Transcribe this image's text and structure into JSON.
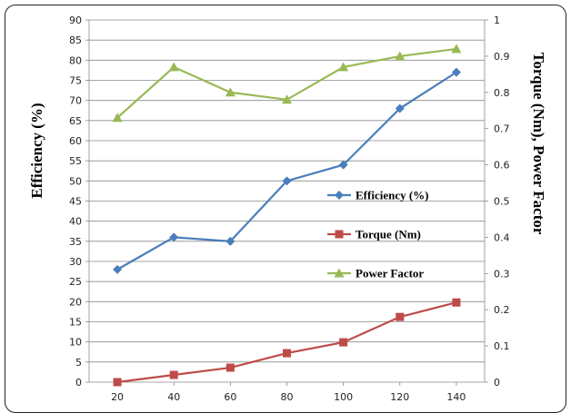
{
  "chart_data": {
    "type": "line",
    "x": [
      20,
      40,
      60,
      80,
      100,
      120,
      140
    ],
    "xlim": [
      10,
      150
    ],
    "xticks": [
      "20",
      "40",
      "60",
      "80",
      "100",
      "120",
      "140"
    ],
    "ylabel_left": "Efficiency (%)",
    "ylabel_right": "Torque (Nm), Power Factor",
    "ylim_left": [
      0,
      90
    ],
    "ylim_right": [
      0,
      1
    ],
    "yticks_left": [
      "0",
      "5",
      "10",
      "15",
      "20",
      "25",
      "30",
      "35",
      "40",
      "45",
      "50",
      "55",
      "60",
      "65",
      "70",
      "75",
      "80",
      "85",
      "90"
    ],
    "yticks_right": [
      "0",
      "0.1",
      "0.2",
      "0.3",
      "0.4",
      "0.5",
      "0.6",
      "0.7",
      "0.8",
      "0.9",
      "1"
    ],
    "grid": "horizontal",
    "legend_position": "right-center",
    "series": [
      {
        "name": "Efficiency (%)",
        "axis": "left",
        "color": "#4A7EBB",
        "marker": "diamond",
        "values": [
          28,
          36,
          35,
          50,
          54,
          68,
          77
        ]
      },
      {
        "name": "Torque (Nm)",
        "axis": "right",
        "color": "#BE4B48",
        "marker": "square",
        "values": [
          0,
          0.02,
          0.04,
          0.08,
          0.11,
          0.18,
          0.22
        ]
      },
      {
        "name": "Power Factor",
        "axis": "right",
        "color": "#98B954",
        "marker": "triangle",
        "values": [
          0.73,
          0.87,
          0.8,
          0.78,
          0.87,
          0.9,
          0.92
        ]
      }
    ]
  }
}
